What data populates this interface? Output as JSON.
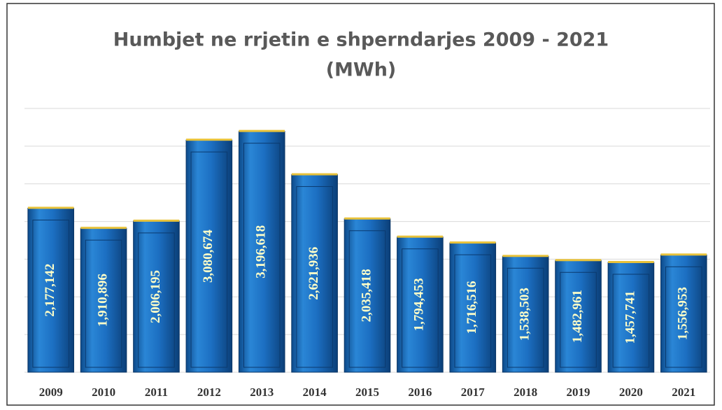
{
  "chart_data": {
    "type": "bar",
    "title": "Humbjet ne rrjetin e shperndarjes 2009 - 2021",
    "subtitle": "(MWh)",
    "categories": [
      "2009",
      "2010",
      "2011",
      "2012",
      "2013",
      "2014",
      "2015",
      "2016",
      "2017",
      "2018",
      "2019",
      "2020",
      "2021"
    ],
    "values": [
      2177142,
      1910896,
      2006195,
      3080674,
      3196618,
      2621936,
      2035418,
      1794453,
      1716516,
      1538503,
      1482961,
      1457741,
      1556953
    ],
    "value_labels": [
      "2,177,142",
      "1,910,896",
      "2,006,195",
      "3,080,674",
      "3,196,618",
      "2,621,936",
      "2,035,418",
      "1,794,453",
      "1,716,516",
      "1,538,503",
      "1,482,961",
      "1,457,741",
      "1,556,953"
    ],
    "color": "#1f6fc0",
    "ylim": [
      0,
      3500000
    ],
    "yticks": [
      0,
      500000,
      1000000,
      1500000,
      2000000,
      2500000,
      3000000,
      3500000
    ],
    "grid": true
  }
}
